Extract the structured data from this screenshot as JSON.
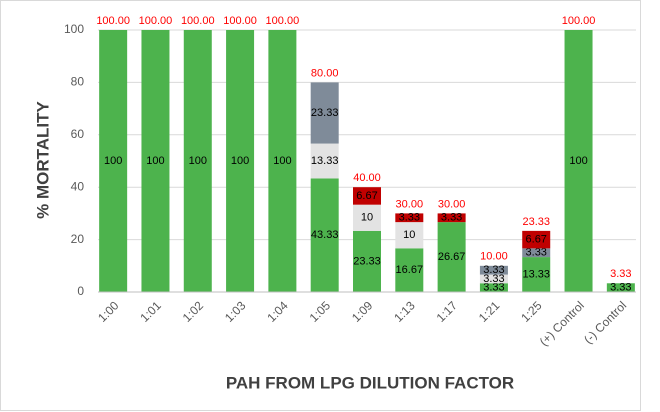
{
  "chart_data": {
    "type": "stacked-bar",
    "y_label": "% MORTALITY",
    "x_label": "PAH FROM LPG DILUTION FACTOR",
    "categories": [
      "1:00",
      "1:01",
      "1:02",
      "1:03",
      "1:04",
      "1:05",
      "1:09",
      "1:13",
      "1:17",
      "1:21",
      "1:25",
      "(+) Control",
      "(-) Control"
    ],
    "series": [
      {
        "color": "#4db34d",
        "values": [
          100,
          100,
          100,
          100,
          100,
          43.33,
          23.33,
          16.67,
          26.67,
          3.33,
          13.33,
          100,
          3.33
        ]
      },
      {
        "color": "#e3e3e3",
        "values": [
          null,
          null,
          null,
          null,
          null,
          13.33,
          10,
          10,
          null,
          3.33,
          null,
          null,
          null
        ]
      },
      {
        "color": "#7f8b99",
        "values": [
          null,
          null,
          null,
          null,
          null,
          23.33,
          null,
          null,
          null,
          3.33,
          3.33,
          null,
          null
        ]
      },
      {
        "color": "#c00000",
        "values": [
          null,
          null,
          null,
          null,
          null,
          null,
          6.67,
          3.33,
          3.33,
          null,
          6.67,
          null,
          null
        ]
      }
    ],
    "totals": {
      "color": "#ff0000",
      "values": [
        100,
        100,
        100,
        100,
        100,
        80,
        40,
        30,
        30,
        10,
        23.33,
        100,
        3.33
      ],
      "value_labels": [
        "100.00",
        "100.00",
        "100.00",
        "100.00",
        "100.00",
        "80.00",
        "40.00",
        "30.00",
        "30.00",
        "10.00",
        "23.33",
        "100.00",
        "3.33"
      ]
    },
    "ylim": [
      0,
      100
    ],
    "yticks": [
      0,
      20,
      40,
      60,
      80,
      100
    ],
    "grid": true
  }
}
